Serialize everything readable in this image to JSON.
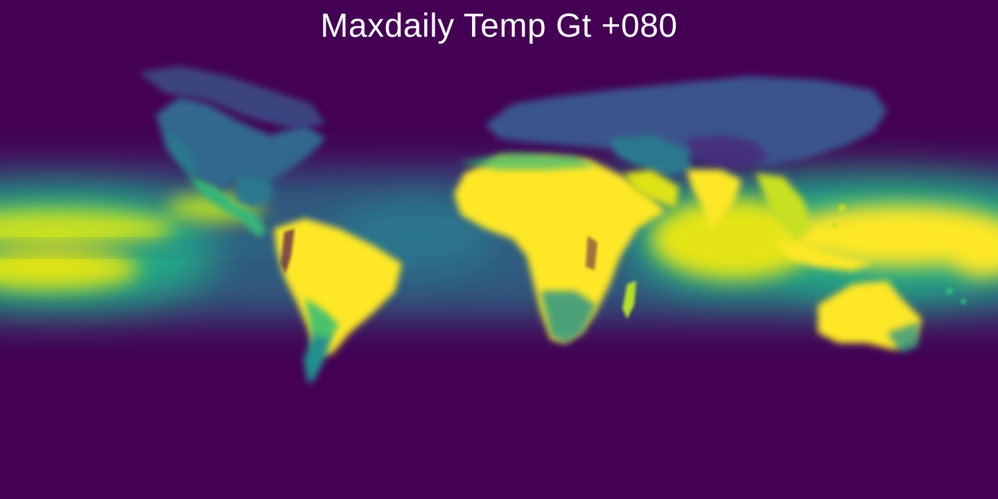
{
  "map": {
    "title": "Maxdaily Temp Gt +080",
    "projection": "equirectangular",
    "colormap": "viridis",
    "colors": {
      "background": "#440154",
      "low": "#440154",
      "mid_low": "#31688e",
      "mid": "#21908d",
      "mid_high": "#5ec962",
      "high": "#fde725"
    }
  }
}
